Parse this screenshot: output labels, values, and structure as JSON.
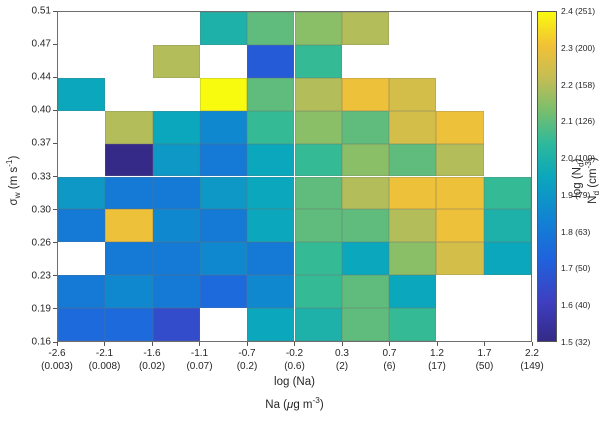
{
  "labels": {
    "x_log": "log (Na)",
    "x_units": {
      "pre": "Na (",
      "mu": "μ",
      "rest": "g m",
      "sup": "-3",
      "close": ")"
    },
    "y": {
      "sym": "σ",
      "sub": "w",
      "rest": " (m s",
      "sup": "-1",
      "close": ")"
    },
    "cb_log": {
      "pre": "log (N",
      "sub": "d",
      "close": ")"
    },
    "cb_lin": {
      "pre": "N",
      "sub": "d",
      "rest": " (cm",
      "sup": "-3",
      "close": ")"
    }
  },
  "chart_data": {
    "type": "heatmap",
    "title": "",
    "xlabel": "log (Na)",
    "xlabel_units": "Na (ug m-3)",
    "ylabel": "sigma_w (m s-1)",
    "grid": "cell edges light gray, missing bins white",
    "x_tick_log": [
      "-2.6",
      "-2.1",
      "-1.6",
      "-1.1",
      "-0.7",
      "-0.2",
      "0.3",
      "0.7",
      "1.2",
      "1.7",
      "2.2"
    ],
    "x_tick_linear": [
      "(0.003)",
      "(0.008)",
      "(0.02)",
      "(0.07)",
      "(0.2)",
      "(0.6)",
      "(2)",
      "(6)",
      "(17)",
      "(50)",
      "(149)"
    ],
    "y_ticks": [
      "0.16",
      "0.19",
      "0.23",
      "0.26",
      "0.30",
      "0.33",
      "0.37",
      "0.40",
      "0.44",
      "0.47",
      "0.51"
    ],
    "values_note": "rows top to bottom correspond to y bins 0.47-0.51 down to 0.16-0.19; null = no data (white)",
    "values": [
      [
        null,
        null,
        null,
        2.0,
        2.1,
        2.15,
        2.2,
        null,
        null,
        null
      ],
      [
        null,
        null,
        2.2,
        null,
        1.7,
        2.05,
        null,
        null,
        null,
        null
      ],
      [
        1.95,
        null,
        null,
        2.4,
        2.1,
        2.2,
        2.3,
        2.25,
        null,
        null
      ],
      [
        null,
        2.2,
        1.95,
        1.85,
        2.05,
        2.15,
        2.1,
        2.25,
        2.3,
        null
      ],
      [
        null,
        1.5,
        1.9,
        1.8,
        1.95,
        2.05,
        2.15,
        2.1,
        2.2,
        null
      ],
      [
        1.9,
        1.8,
        1.8,
        1.9,
        1.95,
        2.1,
        2.2,
        2.3,
        2.3,
        2.05
      ],
      [
        1.8,
        2.3,
        1.85,
        1.8,
        1.95,
        2.1,
        2.1,
        2.2,
        2.3,
        2.0
      ],
      [
        null,
        1.8,
        1.8,
        1.85,
        1.8,
        2.05,
        1.95,
        2.15,
        2.25,
        1.95
      ],
      [
        1.8,
        1.85,
        1.8,
        1.75,
        1.85,
        2.05,
        2.1,
        1.95,
        null,
        null
      ],
      [
        1.75,
        1.75,
        1.65,
        null,
        1.95,
        2.0,
        2.1,
        2.05,
        null,
        null
      ]
    ],
    "colorbar": {
      "min": 1.5,
      "max": 2.4,
      "label_log": "log (Nd)",
      "label_linear": "Nd (cm-3)",
      "ticks": [
        {
          "v": 1.5,
          "label": "1.5 (32)"
        },
        {
          "v": 1.6,
          "label": "1.6 (40)"
        },
        {
          "v": 1.7,
          "label": "1.7 (50)"
        },
        {
          "v": 1.8,
          "label": "1.8 (63)"
        },
        {
          "v": 1.9,
          "label": "1.9 (79)"
        },
        {
          "v": 2.0,
          "label": "2.0 (100)"
        },
        {
          "v": 2.1,
          "label": "2.1 (126)"
        },
        {
          "v": 2.2,
          "label": "2.2 (158)"
        },
        {
          "v": 2.3,
          "label": "2.3 (200)"
        },
        {
          "v": 2.4,
          "label": "2.4 (251)"
        }
      ]
    },
    "colormap": {
      "name": "parula",
      "stops": [
        [
          0.0,
          "#352a87"
        ],
        [
          0.12,
          "#3e3fc1"
        ],
        [
          0.25,
          "#1f63dd"
        ],
        [
          0.37,
          "#1183d3"
        ],
        [
          0.5,
          "#0ba7bc"
        ],
        [
          0.6,
          "#2db99b"
        ],
        [
          0.7,
          "#79be6d"
        ],
        [
          0.8,
          "#c4bd54"
        ],
        [
          0.9,
          "#f2c136"
        ],
        [
          1.0,
          "#f9fb0e"
        ]
      ]
    }
  }
}
